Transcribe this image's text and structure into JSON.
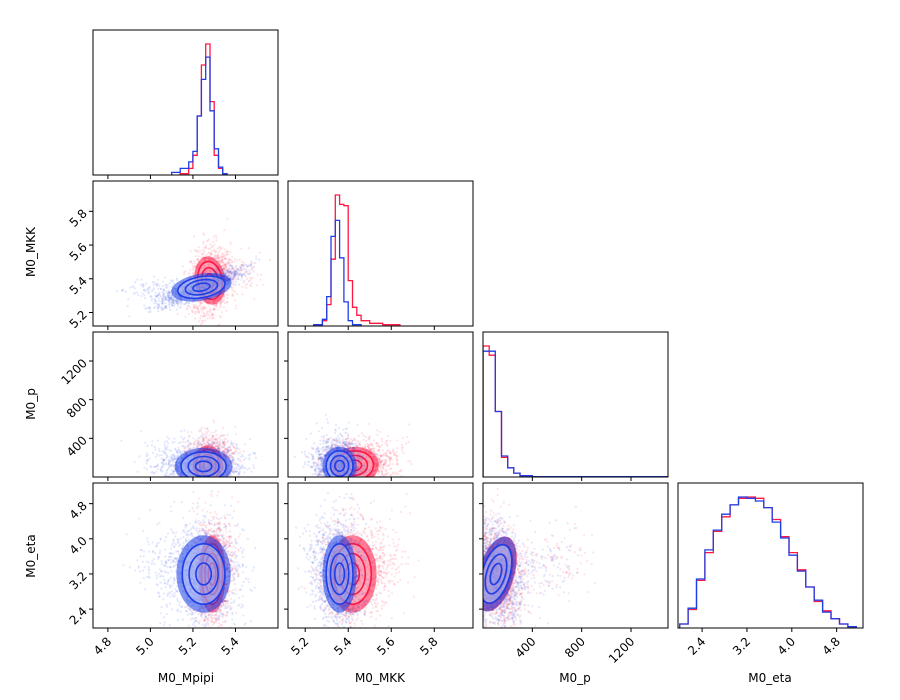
{
  "chart_data": {
    "type": "corner",
    "variables": [
      "M0_Mpipi",
      "M0_MKK",
      "M0_p",
      "M0_eta"
    ],
    "axis_labels": {
      "x": [
        "M0_Mpipi",
        "M0_MKK",
        "M0_p",
        "M0_eta"
      ],
      "y": [
        "",
        "M0_MKK",
        "M0_p",
        "M0_eta"
      ]
    },
    "ranges": {
      "M0_Mpipi": [
        4.73,
        5.6
      ],
      "M0_MKK": [
        5.12,
        5.98
      ],
      "M0_p": [
        0,
        1500
      ],
      "M0_eta": [
        1.97,
        5.27
      ]
    },
    "tick_labels": {
      "M0_Mpipi": [
        "4.8",
        "5.0",
        "5.2",
        "5.4"
      ],
      "M0_MKK": [
        "5.2",
        "5.4",
        "5.6",
        "5.8"
      ],
      "M0_p": [
        "400",
        "800",
        "1200"
      ],
      "M0_eta": [
        "2.4",
        "3.2",
        "4.0",
        "4.8"
      ]
    },
    "series": [
      {
        "color": "#ff1744",
        "hist": {
          "M0_Mpipi": {
            "edges": [
              5.14,
              5.18,
              5.2,
              5.22,
              5.24,
              5.26,
              5.28,
              5.3,
              5.32,
              5.34,
              5.36
            ],
            "values": [
              0.01,
              0.05,
              0.15,
              0.45,
              0.84,
              1.0,
              0.56,
              0.15,
              0.05,
              0.01
            ]
          },
          "M0_MKK": {
            "edges": [
              5.24,
              5.28,
              5.3,
              5.32,
              5.34,
              5.36,
              5.38,
              5.4,
              5.42,
              5.44,
              5.46,
              5.5,
              5.56,
              5.64
            ],
            "values": [
              0.01,
              0.04,
              0.16,
              0.5,
              0.98,
              0.91,
              0.9,
              0.34,
              0.14,
              0.08,
              0.04,
              0.02,
              0.01
            ]
          },
          "M0_p": {
            "edges": [
              0,
              50,
              100,
              150,
              200,
              250,
              300,
              400,
              1500
            ],
            "values": [
              1.0,
              0.93,
              0.5,
              0.15,
              0.07,
              0.03,
              0.01,
              0.003
            ]
          },
          "M0_eta": {
            "edges": [
              2.0,
              2.15,
              2.3,
              2.45,
              2.6,
              2.75,
              2.9,
              3.05,
              3.2,
              3.35,
              3.5,
              3.65,
              3.8,
              3.95,
              4.1,
              4.25,
              4.4,
              4.55,
              4.7,
              4.85,
              5.0,
              5.15
            ],
            "values": [
              0.03,
              0.14,
              0.36,
              0.57,
              0.73,
              0.84,
              0.93,
              0.98,
              0.99,
              0.98,
              0.91,
              0.82,
              0.69,
              0.57,
              0.44,
              0.31,
              0.2,
              0.13,
              0.07,
              0.03,
              0.01
            ]
          }
        }
      },
      {
        "color": "#1e3fe6",
        "hist": {
          "M0_Mpipi": {
            "edges": [
              5.1,
              5.14,
              5.18,
              5.2,
              5.22,
              5.24,
              5.26,
              5.28,
              5.3,
              5.32,
              5.34,
              5.36
            ],
            "values": [
              0.02,
              0.05,
              0.1,
              0.18,
              0.45,
              0.73,
              0.9,
              0.49,
              0.2,
              0.06,
              0.01
            ]
          },
          "M0_MKK": {
            "edges": [
              5.24,
              5.28,
              5.3,
              5.32,
              5.34,
              5.36,
              5.38,
              5.4,
              5.42,
              5.46
            ],
            "values": [
              0.01,
              0.05,
              0.22,
              0.67,
              0.79,
              0.51,
              0.18,
              0.04,
              0.01
            ]
          },
          "M0_p": {
            "edges": [
              0,
              50,
              100,
              150,
              200,
              250,
              300,
              400,
              1500
            ],
            "values": [
              0.96,
              0.96,
              0.5,
              0.16,
              0.07,
              0.03,
              0.01,
              0.003
            ]
          },
          "M0_eta": {
            "edges": [
              2.0,
              2.15,
              2.3,
              2.45,
              2.6,
              2.75,
              2.9,
              3.05,
              3.2,
              3.35,
              3.5,
              3.65,
              3.8,
              3.95,
              4.1,
              4.25,
              4.4,
              4.55,
              4.7,
              4.85,
              5.0,
              5.15
            ],
            "values": [
              0.03,
              0.15,
              0.37,
              0.59,
              0.74,
              0.86,
              0.93,
              0.99,
              0.98,
              0.96,
              0.91,
              0.8,
              0.68,
              0.55,
              0.43,
              0.31,
              0.21,
              0.12,
              0.07,
              0.03,
              0.01
            ]
          }
        }
      }
    ],
    "clusters": {
      "1-0": [
        {
          "color": "#ff1744",
          "cx": 5.28,
          "cy": 5.39,
          "sx": 0.045,
          "sy": 0.09,
          "rho": 0.2,
          "tail": [
            0.2,
            0.12
          ]
        },
        {
          "color": "#1e3fe6",
          "cx": 5.24,
          "cy": 5.35,
          "sx": 0.09,
          "sy": 0.05,
          "rho": 0.85,
          "tail": [
            -0.3,
            -0.05
          ]
        }
      ],
      "2-0": [
        {
          "color": "#ff1744",
          "cx": 5.27,
          "cy": 120,
          "sx": 0.045,
          "sy": 130,
          "rho": 0.0,
          "tail": [
            0.1,
            250
          ]
        },
        {
          "color": "#1e3fe6",
          "cx": 5.25,
          "cy": 110,
          "sx": 0.085,
          "sy": 120,
          "rho": 0.0,
          "tail": [
            -0.25,
            200
          ]
        }
      ],
      "2-1": [
        {
          "color": "#ff1744",
          "cx": 5.43,
          "cy": 120,
          "sx": 0.07,
          "sy": 120,
          "rho": 0.1,
          "tail": [
            0.2,
            230
          ]
        },
        {
          "color": "#1e3fe6",
          "cx": 5.36,
          "cy": 115,
          "sx": 0.05,
          "sy": 125,
          "rho": 0.0,
          "tail": [
            -0.1,
            250
          ]
        }
      ],
      "3-0": [
        {
          "color": "#ff1744",
          "cx": 5.29,
          "cy": 3.2,
          "sx": 0.04,
          "sy": 0.55,
          "rho": 0.0,
          "tail": [
            0.08,
            1.2
          ]
        },
        {
          "color": "#1e3fe6",
          "cx": 5.25,
          "cy": 3.2,
          "sx": 0.08,
          "sy": 0.55,
          "rho": 0.0,
          "tail": [
            -0.3,
            1.0
          ]
        }
      ],
      "3-1": [
        {
          "color": "#ff1744",
          "cx": 5.42,
          "cy": 3.2,
          "sx": 0.07,
          "sy": 0.55,
          "rho": 0.0,
          "tail": [
            0.2,
            1.0
          ]
        },
        {
          "color": "#1e3fe6",
          "cx": 5.36,
          "cy": 3.2,
          "sx": 0.05,
          "sy": 0.55,
          "rho": 0.0,
          "tail": [
            -0.15,
            1.0
          ]
        }
      ],
      "3-2": [
        {
          "color": "#ff1744",
          "cx": 110,
          "cy": 3.2,
          "sx": 90,
          "sy": 0.55,
          "rho": -0.3,
          "tail": [
            700,
            0.8
          ]
        },
        {
          "color": "#1e3fe6",
          "cx": 105,
          "cy": 3.2,
          "sx": 90,
          "sy": 0.55,
          "rho": -0.3,
          "tail": [
            600,
            0.8
          ]
        }
      ]
    },
    "grid": false,
    "legend": "none"
  }
}
